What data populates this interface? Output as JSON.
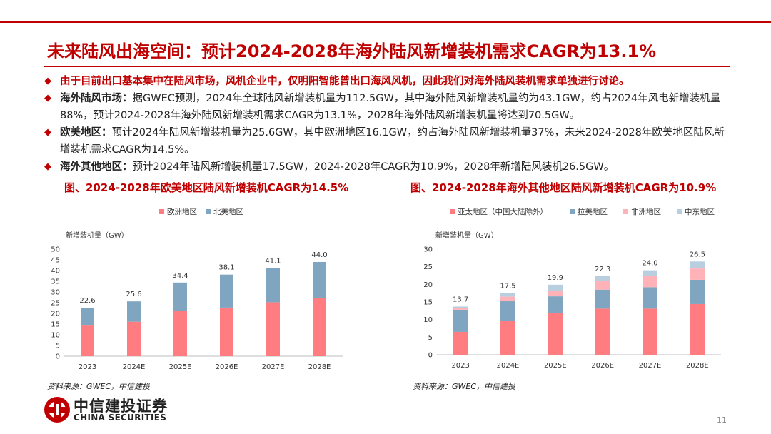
{
  "title": "未来陆风出海空间：预计2024-2028年海外陆风新增装机需求CAGR为13.1%",
  "bullets": [
    {
      "text": "由于目前出口基本集中在陆风市场，风机企业中，仅明阳智能曾出口海风风机，因此我们对海外陆风装机需求单独进行讨论。"
    },
    {
      "label": "海外陆风市场：",
      "text": "据GWEC预测，2024年全球陆风新增装机量为112.5GW，其中海外陆风新增装机量约为43.1GW，约占2024年风电新增装机量88%，预计2024-2028年海外陆风新增装机需求CAGR为13.1%，2028年海外陆风新增装机量将达到70.5GW。"
    },
    {
      "label": "欧美地区：",
      "text": "预计2024年陆风新增装机量为25.6GW，其中欧洲地区16.1GW，约占海外陆风新增装机量37%，未来2024-2028年欧美地区陆风新增装机需求CAGR为14.5%。"
    },
    {
      "label": "海外其他地区：",
      "text": "预计2024年陆风新增装机量17.5GW，2024-2028年CAGR为10.9%，2028年新增陆风装机26.5GW。"
    }
  ],
  "chart_data": [
    {
      "type": "bar",
      "stacked": true,
      "title": "图、2024-2028年欧美地区陆风新增装机CAGR为14.5%",
      "ylabel": "新增装机量（GW）",
      "ylim": [
        0,
        50
      ],
      "yticks": [
        0,
        5,
        10,
        15,
        20,
        25,
        30,
        35,
        40,
        45,
        50
      ],
      "categories": [
        "2023",
        "2024E",
        "2025E",
        "2026E",
        "2027E",
        "2028E"
      ],
      "series": [
        {
          "name": "欧洲地区",
          "color": "#ff7c80",
          "values": [
            14.3,
            16.1,
            21.0,
            22.7,
            25.2,
            27.0
          ]
        },
        {
          "name": "北美地区",
          "color": "#7fa5c0",
          "values": [
            8.3,
            9.5,
            13.4,
            15.4,
            15.9,
            17.0
          ]
        }
      ],
      "totals": [
        "22.6",
        "25.6",
        "34.4",
        "38.1",
        "41.1",
        "44.0"
      ],
      "legend": "top",
      "source": "资料来源：GWEC，中信建投"
    },
    {
      "type": "bar",
      "stacked": true,
      "title": "图、2024-2028年海外其他地区陆风新增装机CAGR为10.9%",
      "ylabel": "新增装机量（GW）",
      "ylim": [
        0,
        30
      ],
      "yticks": [
        0,
        5,
        10,
        15,
        20,
        25,
        30
      ],
      "categories": [
        "2023",
        "2024E",
        "2025E",
        "2026E",
        "2027E",
        "2028E"
      ],
      "series": [
        {
          "name": "亚太地区（中国大陆除外）",
          "color": "#ff7c80",
          "values": [
            6.5,
            9.6,
            11.9,
            13.1,
            13.1,
            14.4
          ]
        },
        {
          "name": "拉美地区",
          "color": "#7fa5c0",
          "values": [
            6.3,
            5.6,
            4.7,
            5.4,
            6.1,
            6.9
          ]
        },
        {
          "name": "非洲地区",
          "color": "#ffb3b8",
          "values": [
            0.5,
            1.3,
            1.6,
            2.5,
            3.1,
            3.2
          ]
        },
        {
          "name": "中东地区",
          "color": "#b9cfe0",
          "values": [
            0.4,
            1.0,
            1.7,
            1.3,
            1.7,
            2.0
          ]
        }
      ],
      "totals": [
        "13.7",
        "17.5",
        "19.9",
        "22.3",
        "24.0",
        "26.5"
      ],
      "legend": "top",
      "source": "资料来源：GWEC，中信建投"
    }
  ],
  "logo": {
    "cn": "中信建投证券",
    "en": "CHINA SECURITIES"
  },
  "page_number": "11",
  "colors": {
    "accent": "#c00000"
  }
}
